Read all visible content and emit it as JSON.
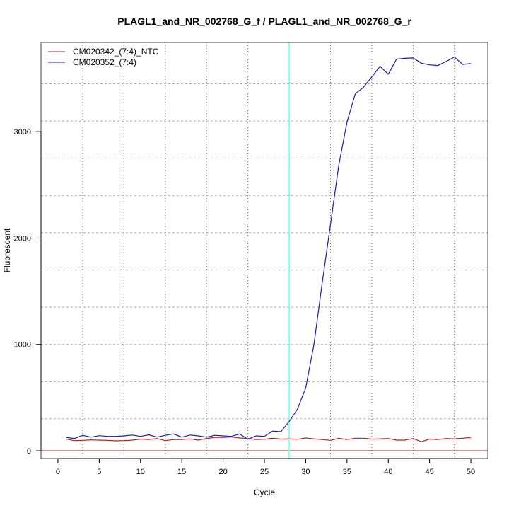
{
  "chart_data": {
    "type": "line",
    "title": "PLAGL1_and_NR_002768_G_f / PLAGL1_and_NR_002768_G_r",
    "xlabel": "Cycle",
    "ylabel": "Fluorescent",
    "xlim": [
      -2.05,
      52.05
    ],
    "ylim": [
      -73,
      3839
    ],
    "xticks": [
      0,
      5,
      10,
      15,
      20,
      25,
      30,
      35,
      40,
      45,
      50
    ],
    "yticks": [
      0,
      1000,
      2000,
      3000
    ],
    "x_grid": [
      3,
      8,
      13,
      18,
      23,
      28,
      33,
      38,
      43,
      48
    ],
    "y_grid": [
      300,
      650,
      1000,
      1350,
      1700,
      2050,
      2400,
      2750,
      3100,
      3450
    ],
    "threshold_cycle": 28,
    "baseline": 0,
    "legend_position": "top-left",
    "colors": {
      "threshold": "#66ffff",
      "baseline": "#a02020"
    },
    "series": [
      {
        "name": "CM020342_(7:4)_NTC",
        "color": "#b02020",
        "x": [
          1,
          2,
          3,
          4,
          5,
          6,
          7,
          8,
          9,
          10,
          11,
          12,
          13,
          14,
          15,
          16,
          17,
          18,
          19,
          20,
          21,
          22,
          23,
          24,
          25,
          26,
          27,
          28,
          29,
          30,
          31,
          32,
          33,
          34,
          35,
          36,
          37,
          38,
          39,
          40,
          41,
          42,
          43,
          44,
          45,
          46,
          47,
          48,
          49,
          50
        ],
        "values": [
          110,
          95,
          98,
          102,
          100,
          98,
          93,
          95,
          100,
          110,
          105,
          115,
          95,
          105,
          105,
          112,
          100,
          115,
          125,
          125,
          130,
          120,
          115,
          105,
          108,
          118,
          110,
          112,
          108,
          120,
          112,
          105,
          98,
          118,
          105,
          118,
          118,
          110,
          112,
          115,
          100,
          100,
          115,
          85,
          110,
          105,
          115,
          112,
          118,
          125
        ]
      },
      {
        "name": "CM020352_(7:4)",
        "color": "#1c1ca8",
        "x": [
          1,
          2,
          3,
          4,
          5,
          6,
          7,
          8,
          9,
          10,
          11,
          12,
          13,
          14,
          15,
          16,
          17,
          18,
          19,
          20,
          21,
          22,
          23,
          24,
          25,
          26,
          27,
          28,
          29,
          30,
          31,
          32,
          33,
          34,
          35,
          36,
          37,
          38,
          39,
          40,
          41,
          42,
          43,
          44,
          45,
          46,
          47,
          48,
          49,
          50
        ],
        "values": [
          125,
          115,
          145,
          128,
          142,
          135,
          135,
          140,
          148,
          135,
          150,
          128,
          145,
          158,
          128,
          148,
          140,
          128,
          145,
          140,
          135,
          158,
          108,
          140,
          135,
          185,
          180,
          275,
          390,
          590,
          1000,
          1580,
          2130,
          2680,
          3090,
          3355,
          3418,
          3515,
          3615,
          3540,
          3682,
          3690,
          3693,
          3644,
          3628,
          3622,
          3660,
          3702,
          3633,
          3641
        ]
      }
    ]
  }
}
